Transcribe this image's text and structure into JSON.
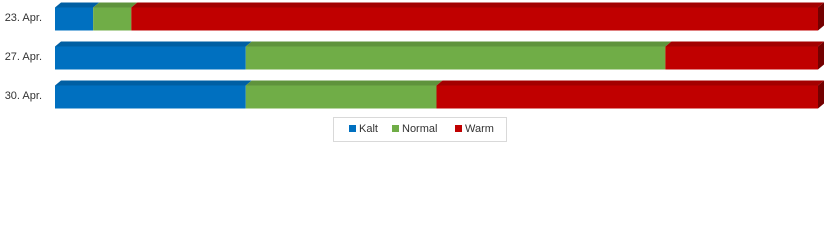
{
  "chart_data": {
    "type": "bar",
    "orientation": "horizontal",
    "stacked": true,
    "categories": [
      "23. Apr.",
      "27. Apr.",
      "30. Apr."
    ],
    "series": [
      {
        "name": "Kalt",
        "color": "#0070c0",
        "values": [
          5,
          25,
          25
        ]
      },
      {
        "name": "Normal",
        "color": "#70ad47",
        "values": [
          5,
          55,
          25
        ]
      },
      {
        "name": "Warm",
        "color": "#c00000",
        "values": [
          90,
          20,
          50
        ]
      }
    ],
    "xlim": [
      0,
      100
    ],
    "legend": "bottom"
  }
}
